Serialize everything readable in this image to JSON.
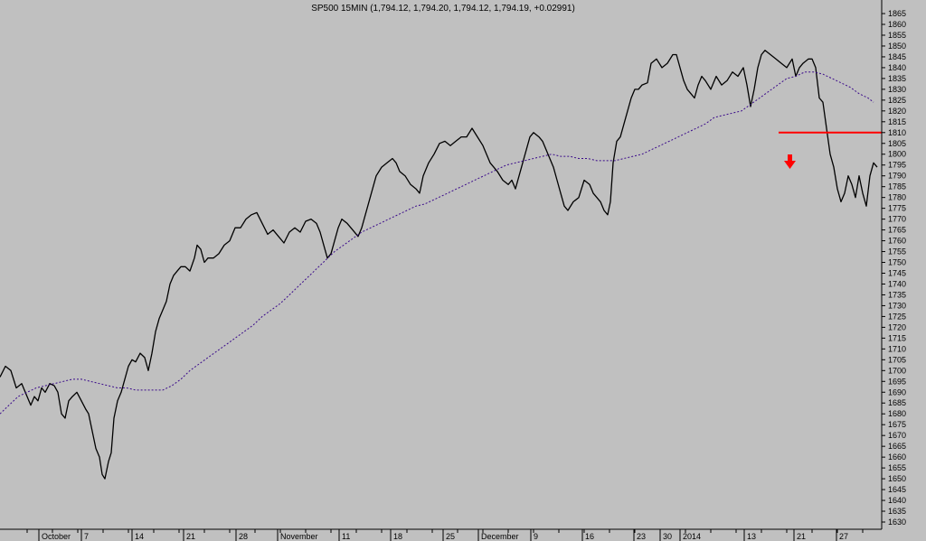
{
  "chart_data": {
    "type": "line",
    "title": "SP500 15MIN (1,794.12, 1,794.20, 1,794.12, 1,794.19, +0.02991)",
    "xlabel": "",
    "ylabel": "",
    "ylim": [
      1630,
      1865
    ],
    "grid": false,
    "x_ticks": [
      "October",
      "7",
      "14",
      "21",
      "28",
      "November",
      "11",
      "18",
      "25",
      "December",
      "9",
      "16",
      "23",
      "30",
      "2014",
      "13",
      "21",
      "27"
    ],
    "y_ticks": [
      1865,
      1860,
      1855,
      1850,
      1845,
      1840,
      1835,
      1830,
      1825,
      1820,
      1815,
      1810,
      1805,
      1800,
      1795,
      1790,
      1785,
      1780,
      1775,
      1770,
      1765,
      1760,
      1755,
      1750,
      1745,
      1740,
      1735,
      1730,
      1725,
      1720,
      1715,
      1710,
      1705,
      1700,
      1695,
      1690,
      1685,
      1680,
      1675,
      1670,
      1665,
      1660,
      1655,
      1650,
      1645,
      1640,
      1635,
      1630
    ],
    "series": [
      {
        "style": "price",
        "color": "#000000",
        "points": [
          [
            0,
            1697
          ],
          [
            6,
            1702
          ],
          [
            12,
            1700
          ],
          [
            18,
            1692
          ],
          [
            24,
            1694
          ],
          [
            30,
            1688
          ],
          [
            34,
            1684
          ],
          [
            38,
            1688
          ],
          [
            42,
            1686
          ],
          [
            46,
            1692
          ],
          [
            50,
            1690
          ],
          [
            55,
            1694
          ],
          [
            60,
            1693
          ],
          [
            64,
            1690
          ],
          [
            68,
            1680
          ],
          [
            72,
            1678
          ],
          [
            76,
            1686
          ],
          [
            80,
            1688
          ],
          [
            85,
            1690
          ],
          [
            90,
            1686
          ],
          [
            95,
            1682
          ],
          [
            98,
            1680
          ],
          [
            102,
            1672
          ],
          [
            106,
            1664
          ],
          [
            110,
            1660
          ],
          [
            113,
            1652
          ],
          [
            116,
            1650
          ],
          [
            120,
            1658
          ],
          [
            123,
            1662
          ],
          [
            126,
            1678
          ],
          [
            130,
            1686
          ],
          [
            134,
            1690
          ],
          [
            138,
            1696
          ],
          [
            142,
            1702
          ],
          [
            146,
            1705
          ],
          [
            150,
            1704
          ],
          [
            155,
            1708
          ],
          [
            160,
            1706
          ],
          [
            164,
            1700
          ],
          [
            168,
            1708
          ],
          [
            172,
            1718
          ],
          [
            176,
            1724
          ],
          [
            180,
            1728
          ],
          [
            184,
            1732
          ],
          [
            188,
            1740
          ],
          [
            192,
            1744
          ],
          [
            196,
            1746
          ],
          [
            200,
            1748
          ],
          [
            205,
            1748
          ],
          [
            210,
            1746
          ],
          [
            215,
            1752
          ],
          [
            218,
            1758
          ],
          [
            222,
            1756
          ],
          [
            226,
            1750
          ],
          [
            230,
            1752
          ],
          [
            236,
            1752
          ],
          [
            242,
            1754
          ],
          [
            248,
            1758
          ],
          [
            254,
            1760
          ],
          [
            260,
            1766
          ],
          [
            266,
            1766
          ],
          [
            272,
            1770
          ],
          [
            278,
            1772
          ],
          [
            284,
            1773
          ],
          [
            290,
            1768
          ],
          [
            296,
            1763
          ],
          [
            302,
            1765
          ],
          [
            308,
            1762
          ],
          [
            314,
            1759
          ],
          [
            320,
            1764
          ],
          [
            326,
            1766
          ],
          [
            332,
            1764
          ],
          [
            338,
            1769
          ],
          [
            344,
            1770
          ],
          [
            350,
            1768
          ],
          [
            354,
            1764
          ],
          [
            358,
            1758
          ],
          [
            362,
            1752
          ],
          [
            366,
            1754
          ],
          [
            370,
            1760
          ],
          [
            374,
            1766
          ],
          [
            378,
            1770
          ],
          [
            384,
            1768
          ],
          [
            390,
            1765
          ],
          [
            396,
            1762
          ],
          [
            400,
            1766
          ],
          [
            404,
            1772
          ],
          [
            408,
            1778
          ],
          [
            412,
            1784
          ],
          [
            416,
            1790
          ],
          [
            422,
            1794
          ],
          [
            428,
            1796
          ],
          [
            434,
            1798
          ],
          [
            438,
            1796
          ],
          [
            442,
            1792
          ],
          [
            448,
            1790
          ],
          [
            454,
            1786
          ],
          [
            460,
            1784
          ],
          [
            464,
            1782
          ],
          [
            468,
            1790
          ],
          [
            474,
            1796
          ],
          [
            480,
            1800
          ],
          [
            486,
            1805
          ],
          [
            492,
            1806
          ],
          [
            498,
            1804
          ],
          [
            504,
            1806
          ],
          [
            510,
            1808
          ],
          [
            516,
            1808
          ],
          [
            522,
            1812
          ],
          [
            528,
            1808
          ],
          [
            534,
            1804
          ],
          [
            538,
            1800
          ],
          [
            542,
            1796
          ],
          [
            546,
            1794
          ],
          [
            550,
            1792
          ],
          [
            556,
            1788
          ],
          [
            562,
            1786
          ],
          [
            566,
            1788
          ],
          [
            570,
            1784
          ],
          [
            574,
            1790
          ],
          [
            578,
            1796
          ],
          [
            582,
            1802
          ],
          [
            586,
            1808
          ],
          [
            590,
            1810
          ],
          [
            596,
            1808
          ],
          [
            600,
            1806
          ],
          [
            606,
            1800
          ],
          [
            612,
            1794
          ],
          [
            616,
            1788
          ],
          [
            620,
            1782
          ],
          [
            624,
            1776
          ],
          [
            628,
            1774
          ],
          [
            634,
            1778
          ],
          [
            640,
            1780
          ],
          [
            646,
            1788
          ],
          [
            652,
            1786
          ],
          [
            656,
            1782
          ],
          [
            660,
            1780
          ],
          [
            664,
            1778
          ],
          [
            668,
            1774
          ],
          [
            672,
            1772
          ],
          [
            675,
            1778
          ],
          [
            678,
            1796
          ],
          [
            682,
            1806
          ],
          [
            686,
            1808
          ],
          [
            690,
            1814
          ],
          [
            694,
            1820
          ],
          [
            698,
            1826
          ],
          [
            702,
            1830
          ],
          [
            706,
            1830
          ],
          [
            710,
            1832
          ],
          [
            716,
            1833
          ],
          [
            720,
            1842
          ],
          [
            726,
            1844
          ],
          [
            732,
            1840
          ],
          [
            738,
            1842
          ],
          [
            744,
            1846
          ],
          [
            748,
            1846
          ],
          [
            752,
            1840
          ],
          [
            756,
            1834
          ],
          [
            760,
            1830
          ],
          [
            764,
            1828
          ],
          [
            768,
            1826
          ],
          [
            772,
            1832
          ],
          [
            776,
            1836
          ],
          [
            780,
            1834
          ],
          [
            786,
            1830
          ],
          [
            792,
            1836
          ],
          [
            798,
            1832
          ],
          [
            804,
            1834
          ],
          [
            810,
            1838
          ],
          [
            816,
            1836
          ],
          [
            822,
            1840
          ],
          [
            826,
            1832
          ],
          [
            830,
            1822
          ],
          [
            834,
            1830
          ],
          [
            838,
            1840
          ],
          [
            842,
            1846
          ],
          [
            846,
            1848
          ],
          [
            852,
            1846
          ],
          [
            858,
            1844
          ],
          [
            864,
            1842
          ],
          [
            870,
            1840
          ],
          [
            876,
            1844
          ],
          [
            880,
            1836
          ],
          [
            884,
            1840
          ],
          [
            888,
            1842
          ],
          [
            894,
            1844
          ],
          [
            898,
            1844
          ],
          [
            902,
            1840
          ],
          [
            906,
            1826
          ],
          [
            910,
            1824
          ],
          [
            914,
            1812
          ],
          [
            918,
            1800
          ],
          [
            922,
            1794
          ],
          [
            926,
            1784
          ],
          [
            930,
            1778
          ],
          [
            934,
            1782
          ],
          [
            938,
            1790
          ],
          [
            942,
            1786
          ],
          [
            946,
            1780
          ],
          [
            950,
            1790
          ],
          [
            954,
            1782
          ],
          [
            958,
            1776
          ],
          [
            962,
            1790
          ],
          [
            966,
            1796
          ],
          [
            970,
            1794
          ]
        ]
      },
      {
        "style": "moving-average",
        "color": "#3a0a8a",
        "points": [
          [
            0,
            1680
          ],
          [
            10,
            1684
          ],
          [
            20,
            1688
          ],
          [
            30,
            1690
          ],
          [
            40,
            1692
          ],
          [
            50,
            1693
          ],
          [
            60,
            1694
          ],
          [
            70,
            1695
          ],
          [
            80,
            1696
          ],
          [
            90,
            1696
          ],
          [
            100,
            1695
          ],
          [
            110,
            1694
          ],
          [
            120,
            1693
          ],
          [
            130,
            1692
          ],
          [
            140,
            1692
          ],
          [
            150,
            1691
          ],
          [
            160,
            1691
          ],
          [
            170,
            1691
          ],
          [
            180,
            1691
          ],
          [
            190,
            1693
          ],
          [
            200,
            1696
          ],
          [
            210,
            1700
          ],
          [
            220,
            1703
          ],
          [
            230,
            1706
          ],
          [
            240,
            1709
          ],
          [
            250,
            1712
          ],
          [
            260,
            1715
          ],
          [
            270,
            1718
          ],
          [
            280,
            1721
          ],
          [
            290,
            1725
          ],
          [
            300,
            1728
          ],
          [
            310,
            1731
          ],
          [
            320,
            1735
          ],
          [
            330,
            1739
          ],
          [
            340,
            1743
          ],
          [
            350,
            1747
          ],
          [
            360,
            1751
          ],
          [
            370,
            1755
          ],
          [
            380,
            1758
          ],
          [
            390,
            1761
          ],
          [
            400,
            1764
          ],
          [
            410,
            1766
          ],
          [
            420,
            1768
          ],
          [
            430,
            1770
          ],
          [
            440,
            1772
          ],
          [
            450,
            1774
          ],
          [
            460,
            1776
          ],
          [
            470,
            1777
          ],
          [
            480,
            1779
          ],
          [
            490,
            1781
          ],
          [
            500,
            1783
          ],
          [
            510,
            1785
          ],
          [
            520,
            1787
          ],
          [
            530,
            1789
          ],
          [
            540,
            1791
          ],
          [
            550,
            1793
          ],
          [
            560,
            1795
          ],
          [
            570,
            1796
          ],
          [
            580,
            1797
          ],
          [
            590,
            1798
          ],
          [
            600,
            1799
          ],
          [
            610,
            1800
          ],
          [
            620,
            1799
          ],
          [
            630,
            1799
          ],
          [
            640,
            1798
          ],
          [
            650,
            1798
          ],
          [
            660,
            1797
          ],
          [
            670,
            1797
          ],
          [
            680,
            1797
          ],
          [
            690,
            1798
          ],
          [
            700,
            1799
          ],
          [
            710,
            1800
          ],
          [
            720,
            1802
          ],
          [
            730,
            1804
          ],
          [
            740,
            1806
          ],
          [
            750,
            1808
          ],
          [
            760,
            1810
          ],
          [
            770,
            1812
          ],
          [
            780,
            1814
          ],
          [
            790,
            1817
          ],
          [
            800,
            1818
          ],
          [
            810,
            1819
          ],
          [
            820,
            1820
          ],
          [
            830,
            1823
          ],
          [
            840,
            1826
          ],
          [
            850,
            1829
          ],
          [
            860,
            1832
          ],
          [
            870,
            1835
          ],
          [
            880,
            1836
          ],
          [
            890,
            1838
          ],
          [
            900,
            1838
          ],
          [
            910,
            1837
          ],
          [
            920,
            1835
          ],
          [
            930,
            1833
          ],
          [
            940,
            1831
          ],
          [
            950,
            1828
          ],
          [
            960,
            1826
          ],
          [
            966,
            1824
          ]
        ]
      }
    ],
    "annotations": [
      {
        "type": "horizontal-line",
        "value": 1810,
        "color": "#ff0000"
      },
      {
        "type": "down-arrow",
        "color": "#ff0000"
      }
    ]
  }
}
